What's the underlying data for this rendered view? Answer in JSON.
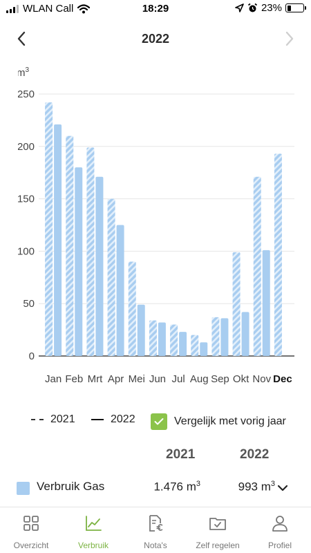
{
  "status_bar": {
    "carrier": "WLAN Call",
    "time": "18:29",
    "battery": "23%",
    "battery_level": 0.23,
    "icons": [
      "signal-icon",
      "wifi-icon",
      "location-icon",
      "alarm-icon",
      "battery-icon"
    ]
  },
  "header": {
    "title": "2022",
    "prev_icon": "chevron-left-icon",
    "next_icon": "chevron-right-icon"
  },
  "chart_data": {
    "type": "bar",
    "ylabel": "m3",
    "ylim": [
      0,
      250
    ],
    "yticks": [
      "0",
      "50",
      "100",
      "150",
      "200",
      "250"
    ],
    "grid": true,
    "categories": [
      "Jan",
      "Feb",
      "Mrt",
      "Apr",
      "Mei",
      "Jun",
      "Jul",
      "Aug",
      "Sep",
      "Okt",
      "Nov",
      "Dec"
    ],
    "highlighted_category": "Dec",
    "series": [
      {
        "name": "2021",
        "style": "hatched",
        "values": [
          242,
          210,
          199,
          150,
          90,
          34,
          30,
          20,
          37,
          99,
          171,
          193
        ]
      },
      {
        "name": "2022",
        "style": "solid",
        "values": [
          221,
          180,
          171,
          125,
          49,
          32,
          23,
          13,
          36,
          42,
          101,
          null
        ]
      }
    ],
    "colors": {
      "bar": "#a8cdf0",
      "hatch_stripe": "#d9eafa",
      "grid": "#e6e6e6",
      "axis": "#444444"
    }
  },
  "legend": {
    "dashed_label": "2021",
    "solid_label": "2022",
    "compare_label": "Vergelijk met vorig jaar",
    "compare_checked": true,
    "check_color": "#8bc34a"
  },
  "summary": {
    "year1": "2021",
    "year2": "2022",
    "row_label": "Verbruik Gas",
    "value_2021": "1.476 m3",
    "value_2022": "993 m3",
    "expand_icon": "chevron-down-icon"
  },
  "bottom_nav": {
    "active": "Verbruik",
    "accent": "#7cb342",
    "tabs": [
      {
        "label": "Overzicht",
        "icon": "grid-icon"
      },
      {
        "label": "Verbruik",
        "icon": "chart-line-icon"
      },
      {
        "label": "Nota's",
        "icon": "invoice-euro-icon"
      },
      {
        "label": "Zelf regelen",
        "icon": "folder-check-icon"
      },
      {
        "label": "Profiel",
        "icon": "person-icon"
      }
    ]
  }
}
